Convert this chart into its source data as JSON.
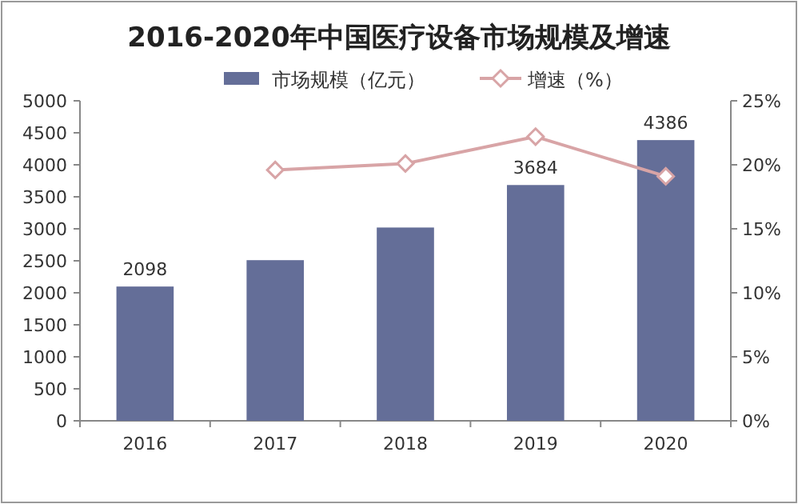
{
  "chart_data": {
    "type": "bar",
    "title": "2016-2020年中国医疗设备市场规模及增速",
    "categories": [
      "2016",
      "2017",
      "2018",
      "2019",
      "2020"
    ],
    "series": [
      {
        "name": "市场规模（亿元）",
        "color": "#646e98",
        "values": [
          2098,
          2510,
          3020,
          3684,
          4386
        ],
        "value_labels": [
          "2098",
          null,
          null,
          "3684",
          "4386"
        ]
      },
      {
        "name": "增速（%）",
        "type": "line",
        "axis": "y2",
        "color": "#d8a4a6",
        "marker": "diamond",
        "values": [
          null,
          19.6,
          20.1,
          22.2,
          19.1
        ]
      }
    ],
    "ylim": [
      0,
      5000
    ],
    "yticks": [
      0,
      500,
      1000,
      1500,
      2000,
      2500,
      3000,
      3500,
      4000,
      4500,
      5000
    ],
    "y2lim": [
      0,
      25
    ],
    "y2ticks": [
      {
        "value": 0,
        "label": "0%"
      },
      {
        "value": 5,
        "label": "5%"
      },
      {
        "value": 10,
        "label": "10%"
      },
      {
        "value": 15,
        "label": "15%"
      },
      {
        "value": 20,
        "label": "20%"
      },
      {
        "value": 25,
        "label": "25%"
      }
    ],
    "legend": "top",
    "grid": false
  }
}
